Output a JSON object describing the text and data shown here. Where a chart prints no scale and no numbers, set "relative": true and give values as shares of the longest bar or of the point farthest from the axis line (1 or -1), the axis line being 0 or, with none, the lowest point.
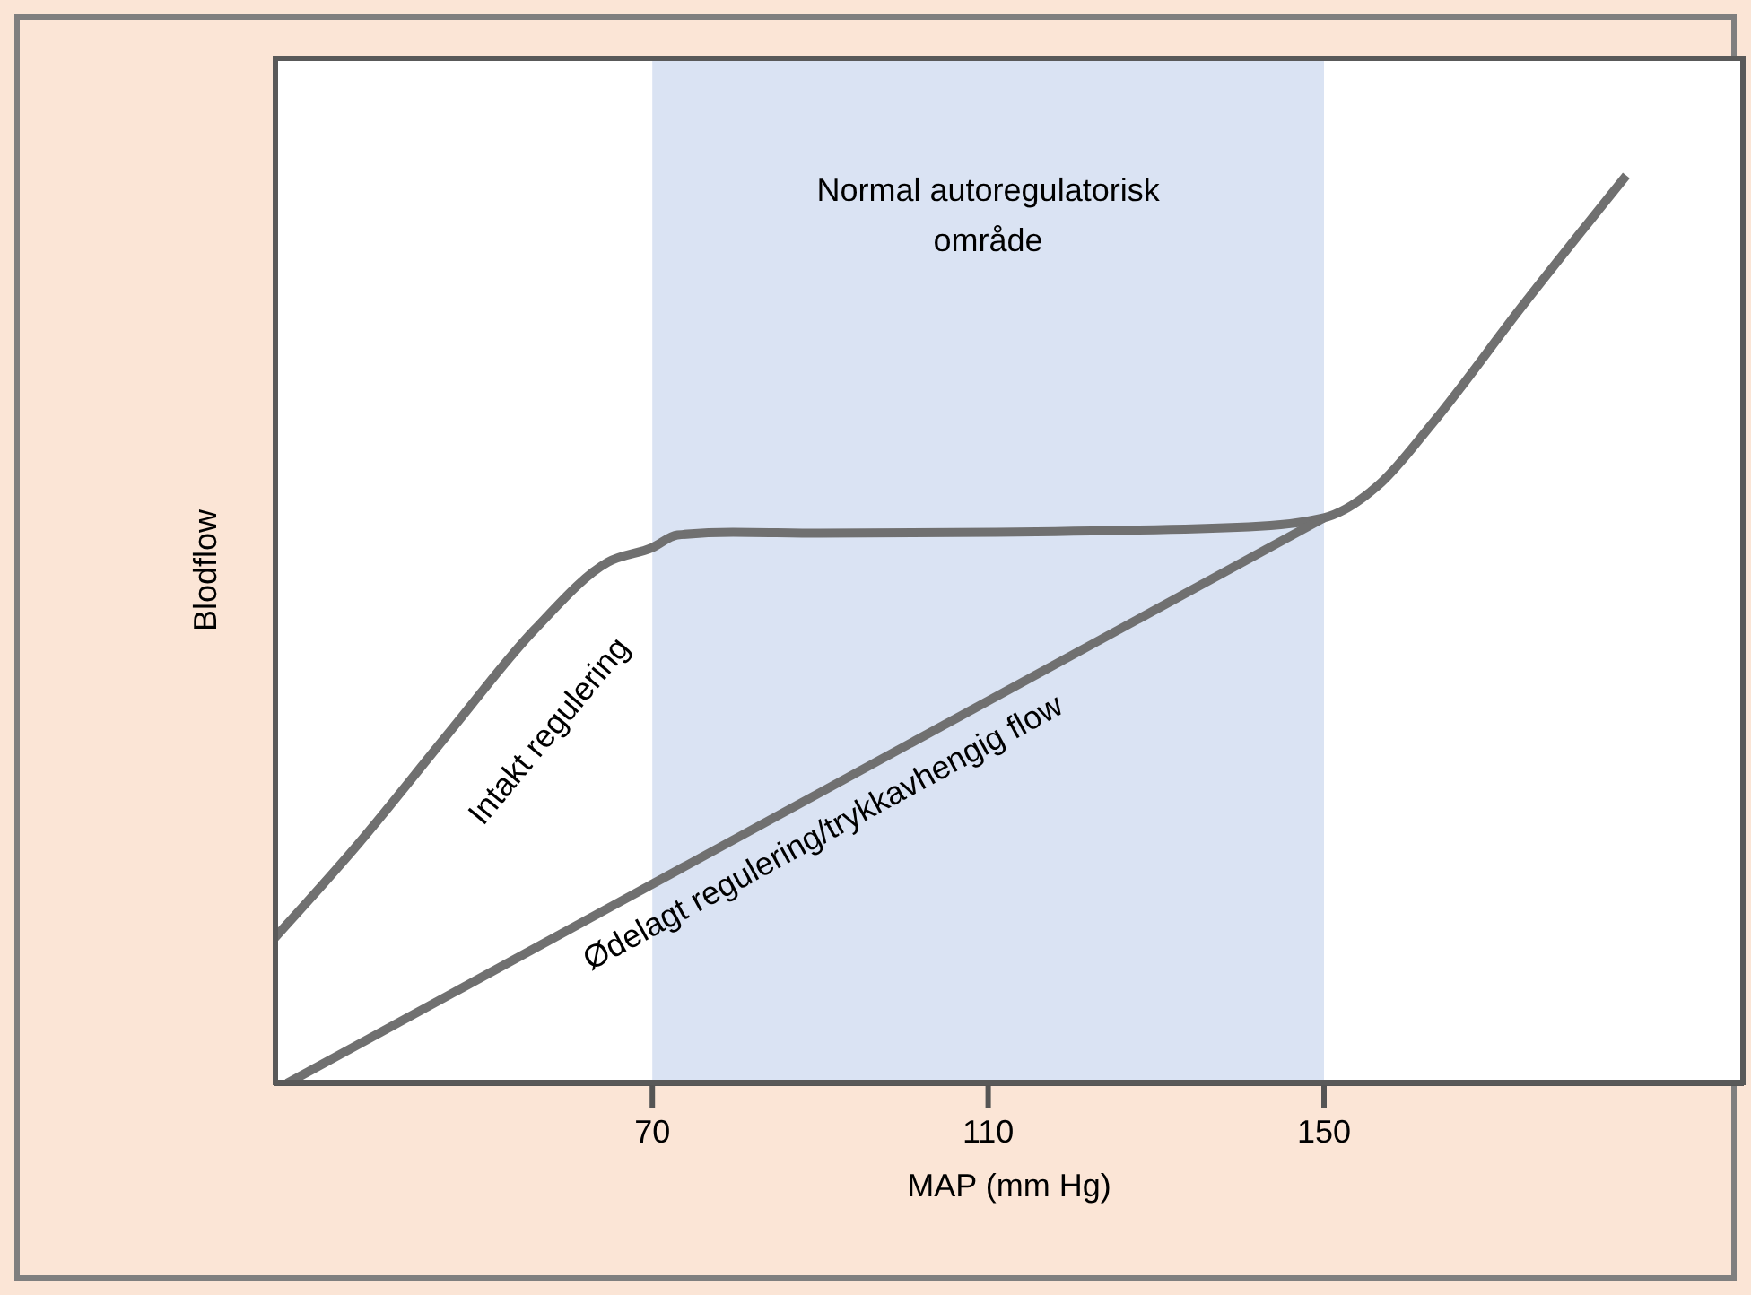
{
  "chart_data": {
    "type": "line",
    "relative": true,
    "xlabel": "MAP (mm Hg)",
    "ylabel": "Blodflow",
    "xlim": [
      25,
      200
    ],
    "xticks": [
      70,
      110,
      150
    ],
    "marker": "none",
    "line_style": "solid",
    "grid": false,
    "tick_labels": "x",
    "bands": [
      {
        "axis": "x",
        "from": 70,
        "to": 150,
        "label": "Normal autoregulatorisk område",
        "color": "#dae3f3"
      }
    ],
    "series": [
      {
        "name": "Intakt regulering",
        "color": "#707070",
        "x": [
          25,
          35,
          45.5,
          56,
          64.7,
          70,
          73,
          79.6,
          90,
          111,
          141,
          150,
          156.5,
          163,
          173.6,
          186
        ],
        "values": [
          0.16,
          0.264,
          0.383,
          0.5,
          0.574,
          0.59,
          0.604,
          0.607,
          0.606,
          0.607,
          0.613,
          0.623,
          0.659,
          0.728,
          0.856,
          1
        ]
      },
      {
        "name": "Ødelagt regulering/trykkavhengig flow",
        "color": "#707070",
        "x": [
          26.5,
          150
        ],
        "values": [
          0,
          0.623
        ]
      }
    ]
  }
}
